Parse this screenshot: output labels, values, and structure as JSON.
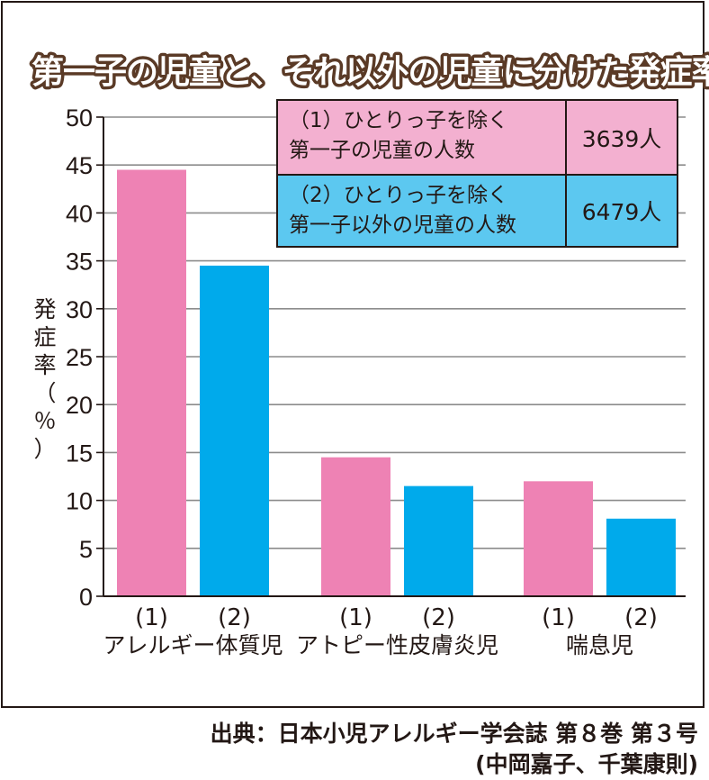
{
  "chart_data": {
    "type": "bar",
    "title": "第一子の児童と、それ以外の児童に分けた発症率",
    "ylabel": "発症率（％）",
    "ylim": [
      0,
      50
    ],
    "yticks": [
      0,
      5,
      10,
      15,
      20,
      25,
      30,
      35,
      40,
      45,
      50
    ],
    "grid": true,
    "categories": [
      "アレルギー体質児",
      "アトピー性皮膚炎児",
      "喘息児"
    ],
    "sub_labels": [
      "(1)",
      "(2)"
    ],
    "series": [
      {
        "name": "(1)",
        "color": "#ee82b4",
        "values": [
          44.5,
          14.5,
          12.0
        ]
      },
      {
        "name": "(2)",
        "color": "#00aaeb",
        "values": [
          34.5,
          11.5,
          8.1
        ]
      }
    ],
    "legend_table": [
      {
        "line1": "（1）ひとりっ子を除く",
        "line2": "第一子の児童の人数",
        "count": "3639人"
      },
      {
        "line1": "（2）ひとりっ子を除く",
        "line2": "第一子以外の児童の人数",
        "count": "6479人"
      }
    ],
    "legend_placement": "top-right"
  },
  "source": {
    "line1": "出典：日本小児アレルギー学会誌 第８巻 第３号",
    "line2": "(中岡嘉子、千葉康則)"
  }
}
